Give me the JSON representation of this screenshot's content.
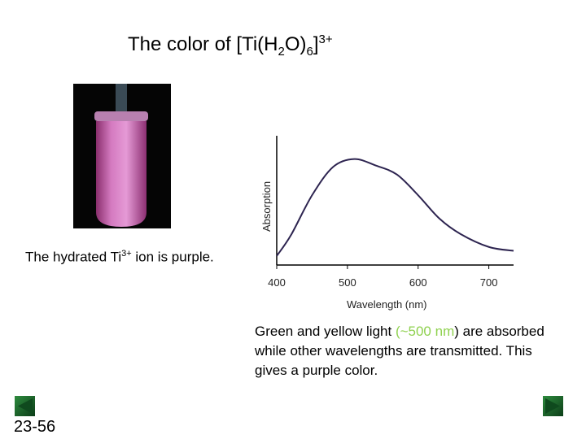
{
  "slide": {
    "title_prefix": "The color of [Ti(H",
    "title_sub1": "2",
    "title_mid": "O)",
    "title_sub2": "6",
    "title_end": "]",
    "title_sup": "3+",
    "caption_prefix": "The hydrated Ti",
    "caption_sup": "3+",
    "caption_suffix": " ion is purple.",
    "desc_part1": "Green and yellow light ",
    "desc_highlight": "(~500 nm",
    "desc_part2": ") are absorbed while other wavelengths are transmitted. This gives a purple color.",
    "highlight_color": "#8fd14f",
    "slide_number": "23-56",
    "nav": {
      "prev_icon": "triangle-left-icon",
      "next_icon": "triangle-right-icon",
      "color": "#1f6b2e"
    }
  },
  "chart_data": {
    "type": "line",
    "xlabel": "Wavelength (nm)",
    "ylabel": "Absorption",
    "xticks": [
      "400",
      "500",
      "600",
      "700"
    ],
    "xlim": [
      400,
      735
    ],
    "ylim": [
      0,
      1
    ],
    "grid": false,
    "line_color": "#2d2450",
    "x": [
      400,
      420,
      450,
      480,
      510,
      540,
      570,
      600,
      630,
      660,
      700,
      735
    ],
    "y": [
      0.07,
      0.23,
      0.54,
      0.76,
      0.82,
      0.77,
      0.7,
      0.54,
      0.36,
      0.24,
      0.14,
      0.11
    ]
  }
}
